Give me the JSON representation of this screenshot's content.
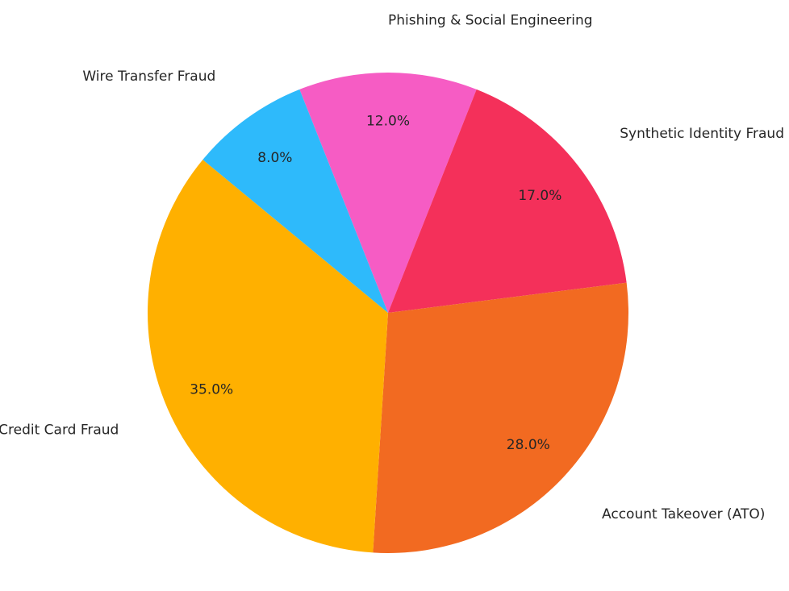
{
  "chart_data": {
    "type": "pie",
    "labels": [
      "Phishing & Social Engineering",
      "Synthetic Identity Fraud",
      "Account Takeover (ATO)",
      "Credit Card Fraud",
      "Wire Transfer Fraud"
    ],
    "values": [
      12.0,
      17.0,
      28.0,
      35.0,
      8.0
    ],
    "pct_labels": [
      "12.0%",
      "17.0%",
      "28.0%",
      "35.0%",
      "8.0%"
    ],
    "colors": [
      "#f65cc4",
      "#f4305a",
      "#f26a21",
      "#ffb000",
      "#2ebafb"
    ],
    "title": "",
    "legend": "none",
    "grid": "off",
    "start_angle_deg": 111.6,
    "direction": "clockwise",
    "label_distance": 1.22,
    "pct_distance": 0.8,
    "text_color": "#262626",
    "background_color": "#ffffff"
  }
}
